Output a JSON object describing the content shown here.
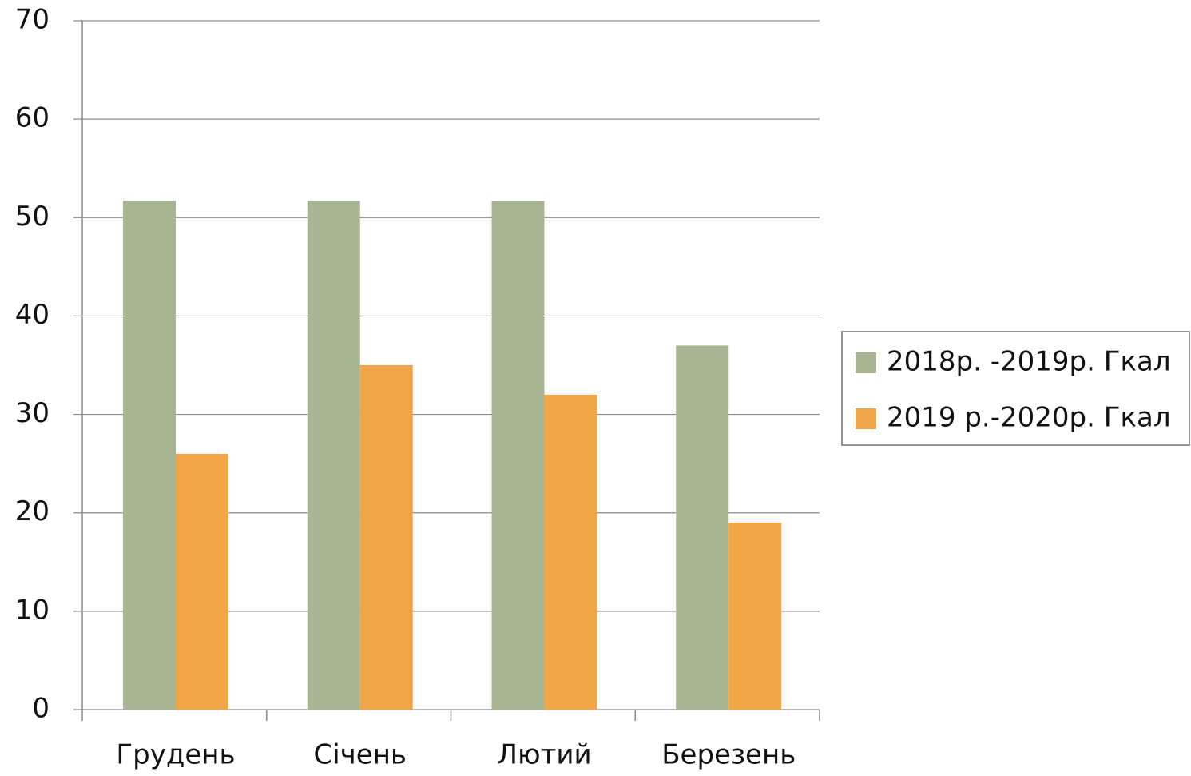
{
  "chart_data": {
    "type": "bar",
    "categories": [
      "Грудень",
      "Січень",
      "Лютий",
      "Березень"
    ],
    "series": [
      {
        "name": "2018р. -2019р. Гкал",
        "color": "#a7b592",
        "values": [
          51.7,
          51.7,
          51.7,
          37
        ]
      },
      {
        "name": "2019 р.-2020р. Гкал",
        "color": "#f0a546",
        "values": [
          26,
          35,
          32,
          19
        ]
      }
    ],
    "ylim": [
      0,
      70
    ],
    "yticks": [
      0,
      10,
      20,
      30,
      40,
      50,
      60,
      70
    ],
    "grid": true,
    "legend": "right"
  }
}
